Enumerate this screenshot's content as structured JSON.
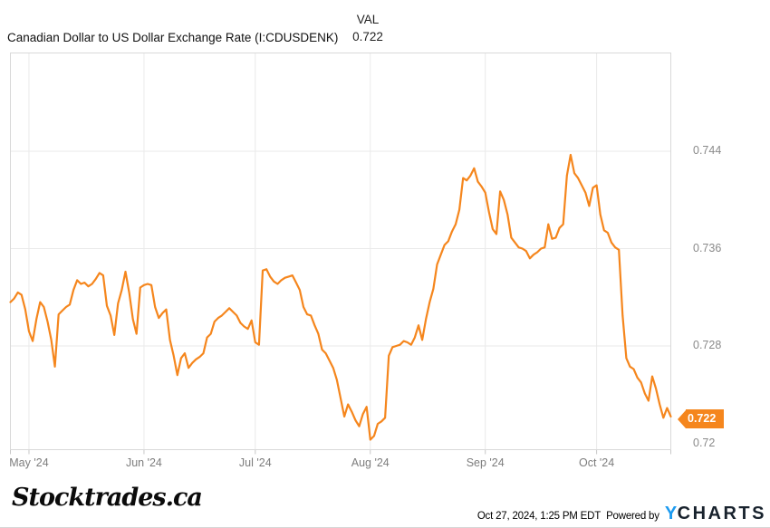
{
  "header": {
    "title": "Canadian Dollar to US Dollar Exchange Rate (I:CDUSDENK)",
    "val_label": "VAL",
    "val_value": "0.722"
  },
  "badge": {
    "value": "0.722"
  },
  "colors": {
    "line": "#F5861D",
    "badge_bg": "#F5861D",
    "grid": "#EAEAEA",
    "border": "#D9D9D9",
    "ycharts_blue": "#1D9BF0"
  },
  "footer": {
    "brand": "Stocktrades.ca",
    "timestamp": "Oct 27, 2024, 1:25 PM EDT",
    "powered_by_label": "Powered by",
    "logo_y": "Y",
    "logo_charts": "CHARTS"
  },
  "chart_data": {
    "type": "line",
    "title": "Canadian Dollar to US Dollar Exchange Rate",
    "series_id": "I:CDUSDENK",
    "grid": true,
    "legend_position": "none",
    "last_value": 0.722,
    "frequency": "daily",
    "start_date": "2024-04-26",
    "x_axis": {
      "tick_labels": [
        "May '24",
        "Jun '24",
        "Jul '24",
        "Aug '24",
        "Sep '24",
        "Oct '24"
      ],
      "tick_day_offsets": [
        5,
        36,
        66,
        97,
        128,
        158
      ],
      "total_days": 178
    },
    "y_axis": {
      "ticks": [
        0.72,
        0.728,
        0.736,
        0.744
      ],
      "labels": [
        "0.72",
        "0.728",
        "0.736",
        "0.744"
      ],
      "gridline_ticks": [
        0.728,
        0.736,
        0.744
      ],
      "ylim": [
        0.7196,
        0.752
      ]
    },
    "series": [
      {
        "name": "CAD to USD",
        "values": [
          0.7316,
          0.7319,
          0.7324,
          0.7322,
          0.731,
          0.7292,
          0.7284,
          0.7302,
          0.7316,
          0.7312,
          0.73,
          0.7285,
          0.7263,
          0.7306,
          0.7309,
          0.7312,
          0.7314,
          0.7326,
          0.7334,
          0.7331,
          0.7332,
          0.7329,
          0.7331,
          0.7335,
          0.734,
          0.7338,
          0.7313,
          0.7305,
          0.7289,
          0.7315,
          0.7326,
          0.7341,
          0.7324,
          0.7302,
          0.729,
          0.7328,
          0.733,
          0.7331,
          0.733,
          0.7312,
          0.7303,
          0.7307,
          0.731,
          0.7285,
          0.7272,
          0.7256,
          0.727,
          0.7274,
          0.7262,
          0.7266,
          0.7269,
          0.7271,
          0.7274,
          0.7287,
          0.729,
          0.73,
          0.7303,
          0.7305,
          0.7308,
          0.7311,
          0.7308,
          0.7305,
          0.7299,
          0.7296,
          0.7294,
          0.7301,
          0.7283,
          0.7281,
          0.7342,
          0.7343,
          0.7337,
          0.7333,
          0.7331,
          0.7334,
          0.7336,
          0.7337,
          0.7338,
          0.7332,
          0.7326,
          0.7312,
          0.7306,
          0.7305,
          0.7297,
          0.729,
          0.7277,
          0.7274,
          0.7268,
          0.7262,
          0.7252,
          0.7237,
          0.7222,
          0.7232,
          0.7226,
          0.7219,
          0.7214,
          0.7224,
          0.723,
          0.7203,
          0.7206,
          0.7216,
          0.7218,
          0.7221,
          0.7272,
          0.7279,
          0.728,
          0.7281,
          0.7284,
          0.7283,
          0.7281,
          0.7287,
          0.7297,
          0.7285,
          0.7302,
          0.7316,
          0.7327,
          0.7347,
          0.7355,
          0.7363,
          0.7366,
          0.7374,
          0.738,
          0.7392,
          0.7418,
          0.7416,
          0.742,
          0.7426,
          0.7415,
          0.7411,
          0.7406,
          0.739,
          0.7376,
          0.7372,
          0.7407,
          0.74,
          0.7388,
          0.7369,
          0.7365,
          0.7361,
          0.736,
          0.7358,
          0.7352,
          0.7355,
          0.7357,
          0.736,
          0.7361,
          0.738,
          0.7368,
          0.7369,
          0.7377,
          0.738,
          0.742,
          0.7437,
          0.7422,
          0.7418,
          0.7412,
          0.7406,
          0.7395,
          0.741,
          0.7412,
          0.7388,
          0.7375,
          0.7373,
          0.7365,
          0.7361,
          0.7359,
          0.7305,
          0.727,
          0.7263,
          0.7261,
          0.7254,
          0.725,
          0.7241,
          0.7235,
          0.7255,
          0.7245,
          0.7232,
          0.7221,
          0.7229,
          0.7222
        ]
      }
    ]
  }
}
